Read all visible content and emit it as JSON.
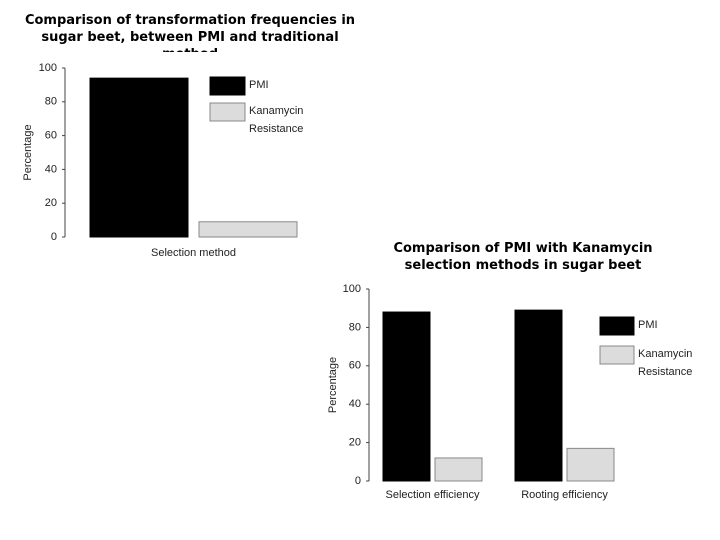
{
  "chart_data": [
    {
      "type": "bar",
      "title": "Comparison of transformation frequencies in sugar beet, between PMI and traditional method",
      "ylabel": "Percentage",
      "categories": [
        "Selection method"
      ],
      "series": [
        {
          "name": "PMI",
          "color": "#000000",
          "values": [
            94
          ]
        },
        {
          "name": "Kanamycin Resistance",
          "color": "#dcdcdc",
          "values": [
            9
          ]
        }
      ],
      "ylim": [
        0,
        100
      ],
      "yticks": [
        0,
        20,
        40,
        60,
        80,
        100
      ]
    },
    {
      "type": "bar",
      "title": "Comparison of PMI with Kanamycin selection methods in sugar beet",
      "ylabel": "Percentage",
      "categories": [
        "Selection efficiency",
        "Rooting efficiency"
      ],
      "series": [
        {
          "name": "PMI",
          "color": "#000000",
          "values": [
            88,
            89
          ]
        },
        {
          "name": "Kanamycin Resistance",
          "color": "#dcdcdc",
          "values": [
            12,
            17
          ]
        }
      ],
      "ylim": [
        0,
        100
      ],
      "yticks": [
        0,
        20,
        40,
        60,
        80,
        100
      ]
    }
  ]
}
